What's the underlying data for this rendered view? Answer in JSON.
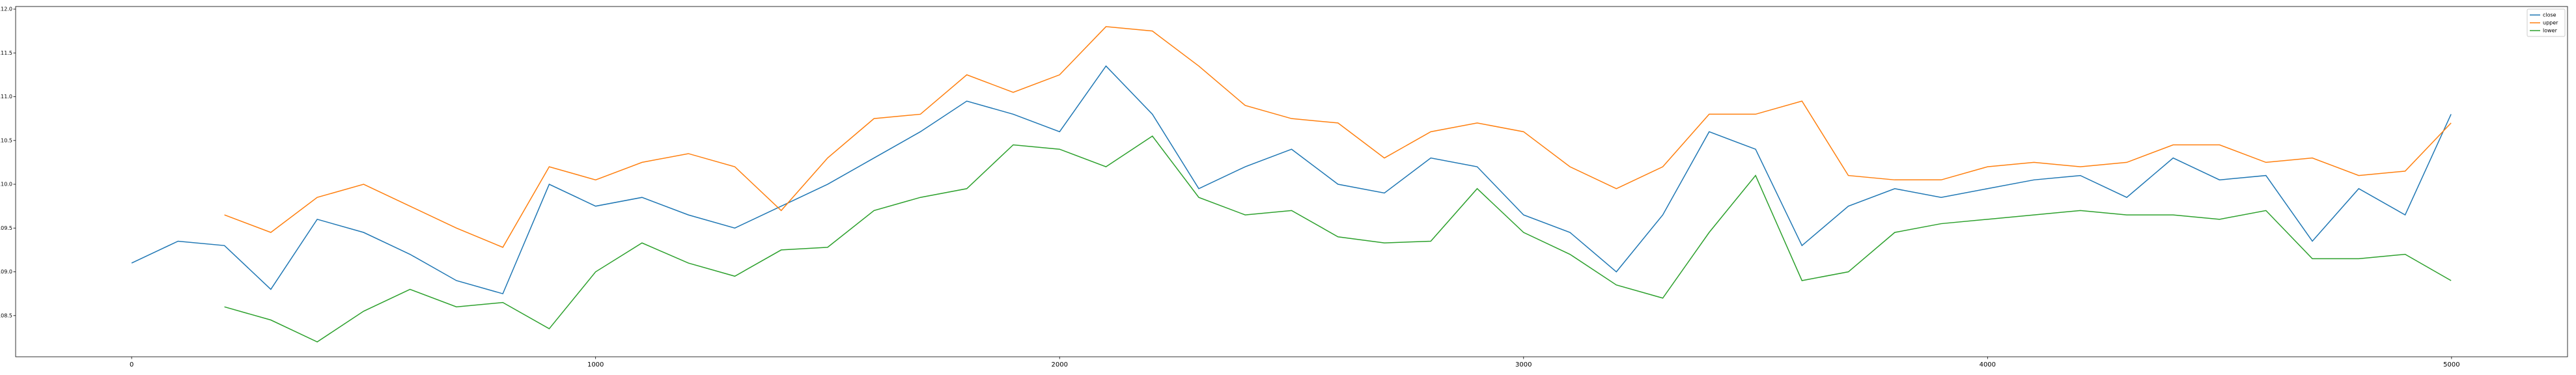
{
  "chart_data": {
    "type": "line",
    "x": [
      0,
      100,
      200,
      300,
      400,
      500,
      600,
      700,
      800,
      900,
      1000,
      1100,
      1200,
      1300,
      1400,
      1500,
      1600,
      1700,
      1800,
      1900,
      2000,
      2100,
      2200,
      2300,
      2400,
      2500,
      2600,
      2700,
      2800,
      2900,
      3000,
      3100,
      3200,
      3300,
      3400,
      3500,
      3600,
      3700,
      3800,
      3900,
      4000,
      4100,
      4200,
      4300,
      4400,
      4500,
      4600,
      4700,
      4800,
      4900,
      4999
    ],
    "series": [
      {
        "name": "close",
        "color": "#1f77b4",
        "values": [
          109.1,
          109.35,
          109.3,
          108.8,
          109.6,
          109.45,
          109.2,
          108.9,
          108.75,
          110.0,
          109.75,
          109.85,
          109.65,
          109.5,
          109.75,
          110.0,
          110.3,
          110.6,
          110.95,
          110.8,
          110.6,
          111.35,
          110.8,
          109.95,
          110.2,
          110.4,
          110.0,
          109.9,
          110.3,
          110.2,
          109.65,
          109.45,
          109.0,
          109.65,
          110.6,
          110.4,
          109.3,
          109.75,
          109.95,
          109.85,
          109.95,
          110.05,
          110.1,
          109.85,
          110.3,
          110.05,
          110.1,
          109.35,
          109.95,
          109.65,
          110.8
        ]
      },
      {
        "name": "upper",
        "color": "#ff7f0e",
        "values": [
          null,
          null,
          109.65,
          109.45,
          109.85,
          110.0,
          109.75,
          109.5,
          109.28,
          110.2,
          110.05,
          110.25,
          110.35,
          110.2,
          109.7,
          110.3,
          110.75,
          110.8,
          111.25,
          111.05,
          111.25,
          111.8,
          111.75,
          111.35,
          110.9,
          110.75,
          110.7,
          110.3,
          110.6,
          110.7,
          110.6,
          110.2,
          109.95,
          110.2,
          110.8,
          110.8,
          110.95,
          110.1,
          110.05,
          110.05,
          110.2,
          110.25,
          110.2,
          110.25,
          110.45,
          110.45,
          110.25,
          110.3,
          110.1,
          110.15,
          110.7
        ]
      },
      {
        "name": "lower",
        "color": "#2ca02c",
        "values": [
          null,
          null,
          108.6,
          108.45,
          108.2,
          108.55,
          108.8,
          108.6,
          108.65,
          108.35,
          109.0,
          109.33,
          109.1,
          108.95,
          109.25,
          109.28,
          109.7,
          109.85,
          109.95,
          110.45,
          110.4,
          110.2,
          110.55,
          109.85,
          109.65,
          109.7,
          109.4,
          109.33,
          109.35,
          109.95,
          109.45,
          109.2,
          108.85,
          108.7,
          109.45,
          110.1,
          108.9,
          109.0,
          109.45,
          109.55,
          109.6,
          109.65,
          109.7,
          109.65,
          109.65,
          109.6,
          109.7,
          109.15,
          109.15,
          109.2,
          108.9
        ]
      }
    ],
    "xlim": [
      -250,
      5250
    ],
    "ylim": [
      108.03,
      112.03
    ],
    "xticks": [
      0,
      1000,
      2000,
      3000,
      4000,
      5000
    ],
    "yticks": [
      108.5,
      {
        "value": 109,
        "label": "109.0"
      },
      109.5,
      {
        "value": 110,
        "label": "110.0"
      },
      110.5,
      {
        "value": 111,
        "label": "111.0"
      },
      111.5,
      {
        "value": 112,
        "label": "112.0"
      }
    ],
    "legend": "upper right"
  }
}
